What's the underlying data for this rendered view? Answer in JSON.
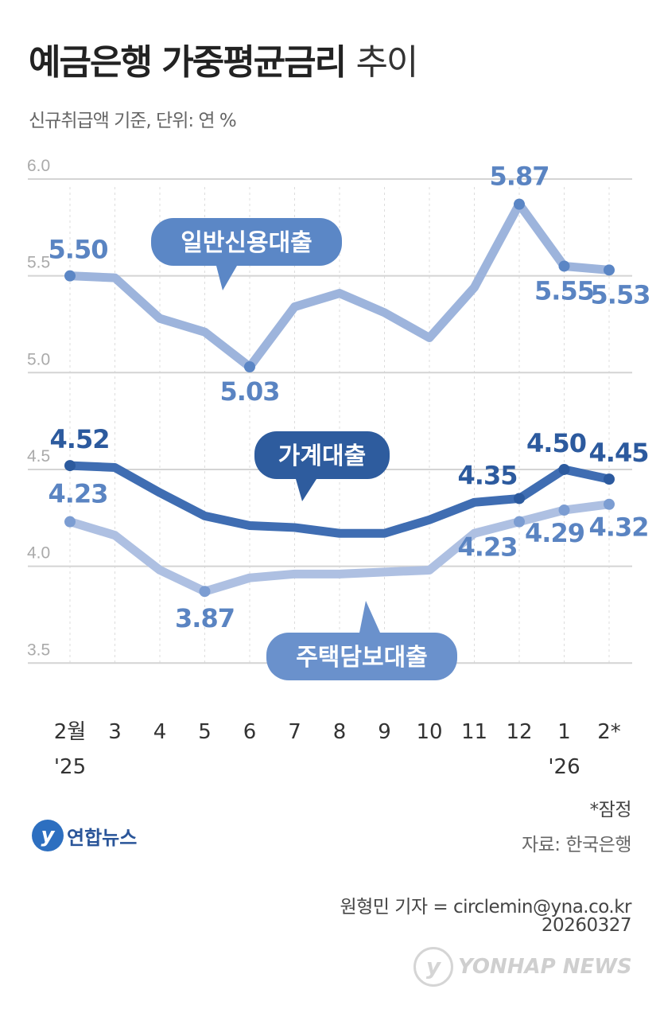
{
  "chart_data": {
    "type": "line",
    "title": "예금은행 가중평균금리",
    "title_suffix": "추이",
    "subtitle": "신규취급액 기준, 단위: 연 %",
    "ylim": [
      3.5,
      6.0
    ],
    "yticks": [
      "6.0",
      "5.5",
      "5.0",
      "4.5",
      "4.0",
      "3.5"
    ],
    "ytick_values": [
      6.0,
      5.5,
      5.0,
      4.5,
      4.0,
      3.5
    ],
    "categories": [
      "2월",
      "3",
      "4",
      "5",
      "6",
      "7",
      "8",
      "9",
      "10",
      "11",
      "12",
      "1",
      "2*"
    ],
    "year_labels": {
      "start": "'25",
      "end": "'26"
    },
    "grid": true,
    "series": [
      {
        "name": "일반신용대출",
        "color": "#9db4dc",
        "dot_color": "#5b86c5",
        "label_bg": "#5b87c6",
        "values": [
          5.5,
          5.49,
          5.28,
          5.21,
          5.03,
          5.34,
          5.41,
          5.31,
          5.18,
          5.44,
          5.87,
          5.55,
          5.53
        ],
        "labels": {
          "0": "5.50",
          "4": "5.03",
          "10": "5.87",
          "11": "5.55",
          "12": "5.53"
        }
      },
      {
        "name": "가계대출",
        "color": "#3f6db2",
        "dot_color": "#2c5a9e",
        "label_bg": "#2e5c9e",
        "values": [
          4.52,
          4.51,
          4.38,
          4.26,
          4.21,
          4.2,
          4.17,
          4.17,
          4.24,
          4.33,
          4.35,
          4.5,
          4.45
        ],
        "labels": {
          "0": "4.52",
          "10": "4.35",
          "11": "4.50",
          "12": "4.45"
        }
      },
      {
        "name": "주택담보대출",
        "color": "#aec0e2",
        "dot_color": "#7c9dd2",
        "label_bg": "#6a91cc",
        "values": [
          4.23,
          4.16,
          3.98,
          3.87,
          3.94,
          3.96,
          3.96,
          3.97,
          3.98,
          4.17,
          4.23,
          4.29,
          4.32
        ],
        "labels": {
          "0": "4.23",
          "3": "3.87",
          "10": "4.23",
          "11": "4.29",
          "12": "4.32"
        }
      }
    ]
  },
  "footer": {
    "note": "*잠정",
    "source": "자료: 한국은행",
    "logo": "연합뉴스",
    "reporter": "원형민 기자 = circlemin@yna.co.kr",
    "date": "20260327",
    "watermark": "YONHAP NEWS"
  }
}
